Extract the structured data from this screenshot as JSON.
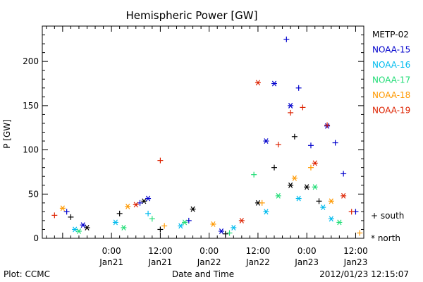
{
  "chart_data": {
    "type": "scatter",
    "title": "Hemispheric Power [GW]",
    "xlabel": "Date and Time",
    "ylabel": "P [GW]",
    "ylim": [
      0,
      240
    ],
    "yticks": [
      0,
      50,
      100,
      150,
      200
    ],
    "xlim": [
      "2012-01-20 07:00",
      "2012-01-23 14:00"
    ],
    "xticks": [
      {
        "time": "2012-01-21 00:00",
        "top": "0:00",
        "bottom": "Jan21"
      },
      {
        "time": "2012-01-21 12:00",
        "top": "12:00",
        "bottom": "Jan21"
      },
      {
        "time": "2012-01-22 00:00",
        "top": "0:00",
        "bottom": "Jan22"
      },
      {
        "time": "2012-01-22 12:00",
        "top": "12:00",
        "bottom": "Jan22"
      },
      {
        "time": "2012-01-23 00:00",
        "top": "0:00",
        "bottom": "Jan23"
      },
      {
        "time": "2012-01-23 12:00",
        "top": "12:00",
        "bottom": "Jan23"
      }
    ],
    "legend_position": "right",
    "marker_legend": [
      {
        "symbol": "+",
        "label": "south"
      },
      {
        "symbol": "*",
        "label": "north"
      }
    ],
    "series": [
      {
        "name": "METP-02",
        "color": "#000000",
        "points": [
          {
            "t": "2012-01-20 14:00",
            "y": 24,
            "h": "south"
          },
          {
            "t": "2012-01-20 18:00",
            "y": 12,
            "h": "north"
          },
          {
            "t": "2012-01-21 02:00",
            "y": 28,
            "h": "south"
          },
          {
            "t": "2012-01-21 08:00",
            "y": 42,
            "h": "north"
          },
          {
            "t": "2012-01-21 12:00",
            "y": 10,
            "h": "south"
          },
          {
            "t": "2012-01-21 20:00",
            "y": 33,
            "h": "north"
          },
          {
            "t": "2012-01-22 04:00",
            "y": 5,
            "h": "south"
          },
          {
            "t": "2012-01-22 12:00",
            "y": 40,
            "h": "north"
          },
          {
            "t": "2012-01-22 16:00",
            "y": 80,
            "h": "south"
          },
          {
            "t": "2012-01-22 20:00",
            "y": 60,
            "h": "north"
          },
          {
            "t": "2012-01-22 21:00",
            "y": 115,
            "h": "south"
          },
          {
            "t": "2012-01-23 00:00",
            "y": 58,
            "h": "north"
          },
          {
            "t": "2012-01-23 03:00",
            "y": 42,
            "h": "south"
          }
        ]
      },
      {
        "name": "NOAA-15",
        "color": "#0000cc",
        "points": [
          {
            "t": "2012-01-20 13:00",
            "y": 30,
            "h": "south"
          },
          {
            "t": "2012-01-20 17:00",
            "y": 15,
            "h": "north"
          },
          {
            "t": "2012-01-21 07:00",
            "y": 40,
            "h": "south"
          },
          {
            "t": "2012-01-21 09:00",
            "y": 45,
            "h": "north"
          },
          {
            "t": "2012-01-21 19:00",
            "y": 20,
            "h": "south"
          },
          {
            "t": "2012-01-22 03:00",
            "y": 8,
            "h": "north"
          },
          {
            "t": "2012-01-22 14:00",
            "y": 110,
            "h": "north"
          },
          {
            "t": "2012-01-22 16:00",
            "y": 175,
            "h": "north"
          },
          {
            "t": "2012-01-22 19:00",
            "y": 225,
            "h": "south"
          },
          {
            "t": "2012-01-22 20:00",
            "y": 150,
            "h": "north"
          },
          {
            "t": "2012-01-22 22:00",
            "y": 170,
            "h": "south"
          },
          {
            "t": "2012-01-23 01:00",
            "y": 105,
            "h": "south"
          },
          {
            "t": "2012-01-23 05:00",
            "y": 127,
            "h": "north"
          },
          {
            "t": "2012-01-23 07:00",
            "y": 108,
            "h": "south"
          },
          {
            "t": "2012-01-23 09:00",
            "y": 73,
            "h": "south"
          },
          {
            "t": "2012-01-23 12:00",
            "y": 30,
            "h": "south"
          }
        ]
      },
      {
        "name": "NOAA-16",
        "color": "#00bbee",
        "points": [
          {
            "t": "2012-01-20 15:00",
            "y": 10,
            "h": "north"
          },
          {
            "t": "2012-01-21 01:00",
            "y": 18,
            "h": "north"
          },
          {
            "t": "2012-01-21 09:00",
            "y": 28,
            "h": "south"
          },
          {
            "t": "2012-01-21 17:00",
            "y": 14,
            "h": "north"
          },
          {
            "t": "2012-01-22 06:00",
            "y": 12,
            "h": "north"
          },
          {
            "t": "2012-01-22 14:00",
            "y": 30,
            "h": "north"
          },
          {
            "t": "2012-01-22 22:00",
            "y": 45,
            "h": "north"
          },
          {
            "t": "2012-01-23 04:00",
            "y": 35,
            "h": "north"
          },
          {
            "t": "2012-01-23 06:00",
            "y": 22,
            "h": "north"
          }
        ]
      },
      {
        "name": "NOAA-17",
        "color": "#22dd77",
        "points": [
          {
            "t": "2012-01-20 16:00",
            "y": 8,
            "h": "north"
          },
          {
            "t": "2012-01-21 03:00",
            "y": 12,
            "h": "north"
          },
          {
            "t": "2012-01-21 10:00",
            "y": 22,
            "h": "south"
          },
          {
            "t": "2012-01-21 18:00",
            "y": 18,
            "h": "north"
          },
          {
            "t": "2012-01-22 05:00",
            "y": 6,
            "h": "south"
          },
          {
            "t": "2012-01-22 11:00",
            "y": 72,
            "h": "south"
          },
          {
            "t": "2012-01-22 17:00",
            "y": 48,
            "h": "north"
          },
          {
            "t": "2012-01-23 02:00",
            "y": 58,
            "h": "north"
          },
          {
            "t": "2012-01-23 08:00",
            "y": 18,
            "h": "north"
          }
        ]
      },
      {
        "name": "NOAA-18",
        "color": "#ff9900",
        "points": [
          {
            "t": "2012-01-20 12:00",
            "y": 34,
            "h": "north"
          },
          {
            "t": "2012-01-21 04:00",
            "y": 36,
            "h": "north"
          },
          {
            "t": "2012-01-21 13:00",
            "y": 14,
            "h": "south"
          },
          {
            "t": "2012-01-22 01:00",
            "y": 16,
            "h": "north"
          },
          {
            "t": "2012-01-22 13:00",
            "y": 40,
            "h": "south"
          },
          {
            "t": "2012-01-22 21:00",
            "y": 68,
            "h": "north"
          },
          {
            "t": "2012-01-23 01:00",
            "y": 80,
            "h": "south"
          },
          {
            "t": "2012-01-23 06:00",
            "y": 42,
            "h": "north"
          },
          {
            "t": "2012-01-23 13:00",
            "y": 6,
            "h": "south"
          }
        ]
      },
      {
        "name": "NOAA-19",
        "color": "#dd2200",
        "points": [
          {
            "t": "2012-01-20 10:00",
            "y": 26,
            "h": "south"
          },
          {
            "t": "2012-01-21 06:00",
            "y": 38,
            "h": "north"
          },
          {
            "t": "2012-01-21 12:00",
            "y": 88,
            "h": "south"
          },
          {
            "t": "2012-01-22 08:00",
            "y": 20,
            "h": "north"
          },
          {
            "t": "2012-01-22 12:00",
            "y": 176,
            "h": "north"
          },
          {
            "t": "2012-01-22 17:00",
            "y": 106,
            "h": "south"
          },
          {
            "t": "2012-01-22 20:00",
            "y": 142,
            "h": "south"
          },
          {
            "t": "2012-01-22 23:00",
            "y": 148,
            "h": "south"
          },
          {
            "t": "2012-01-23 02:00",
            "y": 85,
            "h": "north"
          },
          {
            "t": "2012-01-23 05:00",
            "y": 128,
            "h": "south"
          },
          {
            "t": "2012-01-23 09:00",
            "y": 48,
            "h": "north"
          },
          {
            "t": "2012-01-23 11:00",
            "y": 30,
            "h": "south"
          }
        ]
      }
    ]
  },
  "footer": {
    "left": "Plot: CCMC",
    "right": "2012/01/23 12:15:07"
  }
}
